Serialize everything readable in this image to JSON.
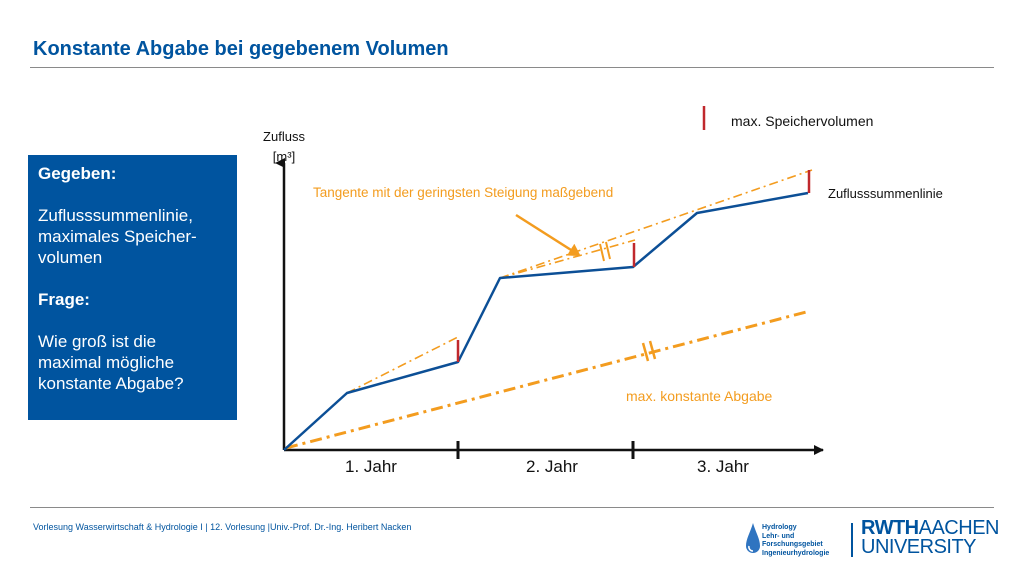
{
  "header": {
    "title": "Konstante Abgabe bei gegebenem Volumen"
  },
  "infobox": {
    "given_heading": "Gegeben:",
    "given_line1": "Zuflusssummenlinie,",
    "given_line2": "maximales Speicher-",
    "given_line3": "volumen",
    "question_heading": "Frage:",
    "question_line1": "Wie groß ist die",
    "question_line2": "maximal mögliche",
    "question_line3": "konstante Abgabe?"
  },
  "diagram": {
    "y_axis_label_line1": "Zufluss",
    "y_axis_label_line2": "[m³]",
    "x_labels": [
      "1. Jahr",
      "2. Jahr",
      "3. Jahr"
    ],
    "legend_max_storage": "max. Speichervolumen",
    "label_cumulative_line": "Zuflusssummenlinie",
    "label_tangent": "Tangente mit der geringsten Steigung maßgebend",
    "label_max_release": "max. konstante Abgabe",
    "colors": {
      "inflow": "#0c4f96",
      "tangent": "#f39c1f",
      "storage": "#c0282d",
      "axis": "#111111"
    }
  },
  "footer": {
    "text": "Vorlesung Wasserwirtschaft & Hydrologie I | 12. Vorlesung |Univ.-Prof. Dr.-Ing. Heribert Nacken",
    "hydro_line1": "Hydrology",
    "hydro_line2": "Lehr- und",
    "hydro_line3": "Forschungsgebiet",
    "hydro_line4": "Ingenieurhydrologie",
    "rwth_part1": "RWTH",
    "rwth_part2": "AACHEN",
    "rwth_part3": "UNIVERSITY"
  }
}
